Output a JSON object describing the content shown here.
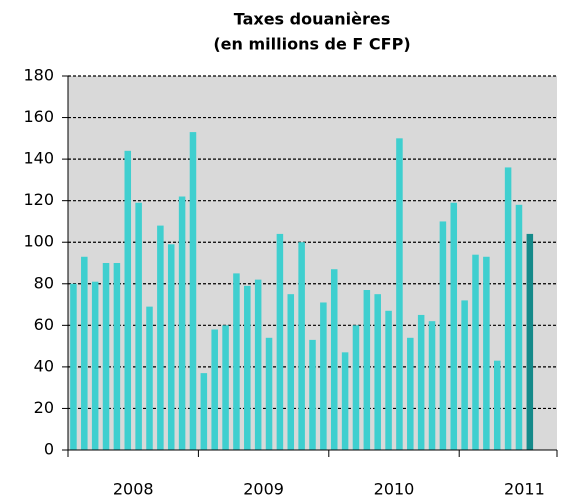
{
  "chart_data": {
    "type": "bar",
    "title": [
      "Taxes douanières",
      "(en millions de F CFP)"
    ],
    "categories": [
      null,
      null,
      null,
      null,
      null,
      null,
      null,
      null,
      null,
      null,
      null,
      null,
      null,
      null,
      null,
      null,
      null,
      null,
      null,
      null,
      null,
      null,
      null,
      null,
      null,
      null,
      null,
      null,
      null,
      null,
      null,
      null,
      null,
      null,
      null,
      null,
      null,
      null,
      null,
      null,
      null,
      null,
      null
    ],
    "values": [
      80,
      93,
      81,
      90,
      90,
      144,
      119,
      69,
      108,
      99,
      122,
      153,
      37,
      58,
      60,
      85,
      79,
      82,
      54,
      104,
      75,
      100,
      53,
      71,
      87,
      47,
      60,
      77,
      75,
      67,
      150,
      54,
      65,
      62,
      110,
      119,
      72,
      94,
      93,
      43,
      136,
      118,
      104
    ],
    "year_labels": [
      "2008",
      "2009",
      "2010",
      "2011"
    ],
    "color": "#3fcfcf",
    "last_color": "#158a8a",
    "ylim": [
      0,
      180
    ],
    "yticks": [
      0,
      20,
      40,
      60,
      80,
      100,
      120,
      140,
      160,
      180
    ],
    "grid": true
  }
}
